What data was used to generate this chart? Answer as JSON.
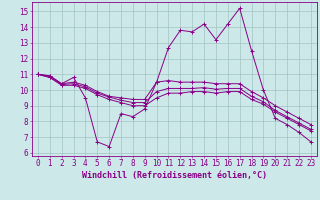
{
  "xlabel": "Windchill (Refroidissement éolien,°C)",
  "xlim": [
    -0.5,
    23.5
  ],
  "ylim": [
    5.8,
    15.6
  ],
  "yticks": [
    6,
    7,
    8,
    9,
    10,
    11,
    12,
    13,
    14,
    15
  ],
  "xticks": [
    0,
    1,
    2,
    3,
    4,
    5,
    6,
    7,
    8,
    9,
    10,
    11,
    12,
    13,
    14,
    15,
    16,
    17,
    18,
    19,
    20,
    21,
    22,
    23
  ],
  "bg_color": "#cce8e8",
  "line_color": "#880088",
  "grid_color": "#99bbbb",
  "series": [
    [
      11.0,
      10.9,
      10.4,
      10.8,
      9.5,
      6.7,
      6.4,
      8.5,
      8.3,
      8.8,
      10.5,
      12.7,
      13.8,
      13.7,
      14.2,
      13.2,
      14.2,
      15.2,
      12.5,
      10.0,
      8.2,
      7.8,
      7.3,
      6.7
    ],
    [
      11.0,
      10.9,
      10.4,
      10.5,
      10.3,
      9.9,
      9.6,
      9.5,
      9.4,
      9.4,
      10.5,
      10.6,
      10.5,
      10.5,
      10.5,
      10.4,
      10.4,
      10.4,
      9.9,
      9.5,
      9.0,
      8.6,
      8.2,
      7.8
    ],
    [
      11.0,
      10.8,
      10.35,
      10.4,
      10.2,
      9.8,
      9.55,
      9.35,
      9.2,
      9.2,
      9.9,
      10.1,
      10.1,
      10.1,
      10.15,
      10.05,
      10.1,
      10.1,
      9.6,
      9.25,
      8.7,
      8.3,
      7.9,
      7.5
    ],
    [
      11.0,
      10.8,
      10.3,
      10.3,
      10.1,
      9.7,
      9.4,
      9.2,
      9.0,
      9.0,
      9.5,
      9.8,
      9.8,
      9.9,
      9.9,
      9.8,
      9.9,
      9.9,
      9.4,
      9.1,
      8.6,
      8.2,
      7.8,
      7.4
    ]
  ],
  "tick_fontsize": 5.5,
  "xlabel_fontsize": 6.0,
  "line_width": 0.7,
  "marker_size": 2.5
}
